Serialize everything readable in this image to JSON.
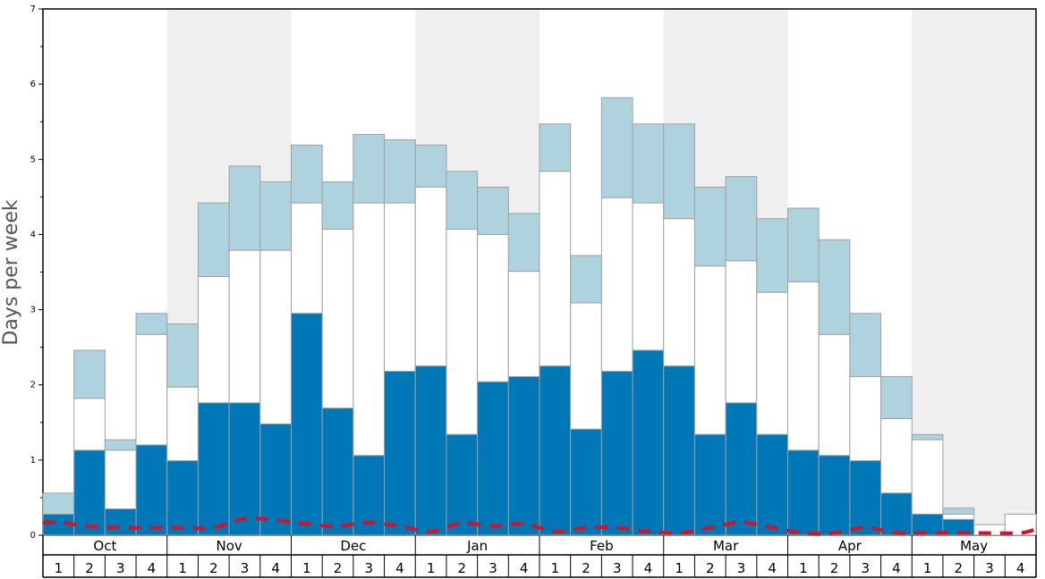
{
  "chart_data": {
    "type": "bar",
    "stacked": true,
    "ylabel": "Days per week",
    "ylim": [
      0,
      7
    ],
    "yticks": [
      "0",
      "1",
      "2",
      "3",
      "4",
      "5",
      "6",
      "7"
    ],
    "months": [
      "Oct",
      "Nov",
      "Dec",
      "Jan",
      "Feb",
      "Mar",
      "Apr",
      "May"
    ],
    "weeks": [
      "1",
      "2",
      "3",
      "4"
    ],
    "shaded_months": [
      "Nov",
      "Jan",
      "Mar",
      "May"
    ],
    "colors": {
      "bottom": "#0077b6",
      "middle": "#ffffff",
      "top": "#aed3df",
      "border": "#a0a0a0",
      "dashed_line": "#d4122a",
      "shading": "#efefef"
    },
    "totals": [
      0.56,
      2.46,
      1.27,
      2.95,
      2.81,
      4.42,
      4.91,
      4.7,
      5.19,
      4.7,
      5.33,
      5.26,
      5.19,
      4.84,
      4.63,
      4.28,
      5.47,
      3.72,
      5.82,
      5.47,
      5.47,
      4.63,
      4.77,
      4.21,
      4.35,
      3.93,
      2.95,
      2.11,
      1.34,
      0.36,
      0.14,
      0.28
    ],
    "middle_tops": [
      0.28,
      1.82,
      1.13,
      2.67,
      1.97,
      3.44,
      3.79,
      3.79,
      4.42,
      4.07,
      4.42,
      4.42,
      4.63,
      4.07,
      4.0,
      3.51,
      4.84,
      3.09,
      4.49,
      4.42,
      4.21,
      3.58,
      3.65,
      3.23,
      3.37,
      2.67,
      2.11,
      1.55,
      1.27,
      0.28,
      0.14,
      0.28
    ],
    "bottom": [
      0.28,
      1.13,
      0.35,
      1.2,
      0.99,
      1.76,
      1.76,
      1.48,
      2.95,
      1.69,
      1.06,
      2.18,
      2.25,
      1.34,
      2.04,
      2.11,
      2.25,
      1.41,
      2.18,
      2.46,
      2.25,
      1.34,
      1.76,
      1.34,
      1.13,
      1.06,
      0.99,
      0.56,
      0.28,
      0.21,
      0.0,
      0.0
    ],
    "dashed_line": [
      0.17,
      0.12,
      0.1,
      0.1,
      0.1,
      0.1,
      0.22,
      0.2,
      0.15,
      0.12,
      0.17,
      0.12,
      0.05,
      0.16,
      0.12,
      0.15,
      0.05,
      0.1,
      0.1,
      0.05,
      0.03,
      0.1,
      0.17,
      0.1,
      0.03,
      0.03,
      0.1,
      0.03,
      0.03,
      0.03,
      0.03,
      0.03
    ]
  }
}
